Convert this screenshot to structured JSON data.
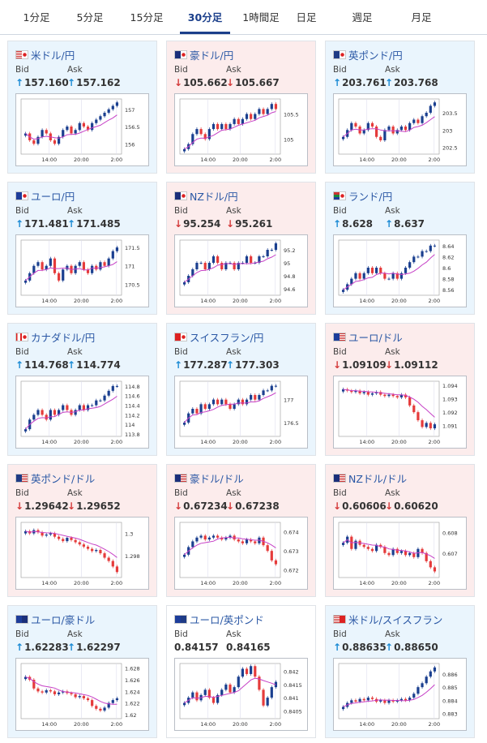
{
  "tabs": [
    {
      "label": "1分足",
      "active": false
    },
    {
      "label": "5分足",
      "active": false
    },
    {
      "label": "15分足",
      "active": false
    },
    {
      "label": "30分足",
      "active": true
    },
    {
      "label": "1時間足",
      "active": false
    },
    {
      "label": "日足",
      "active": false
    },
    {
      "label": "週足",
      "active": false
    },
    {
      "label": "月足",
      "active": false
    }
  ],
  "bid_label": "Bid",
  "ask_label": "Ask",
  "x_ticks": [
    "14:00",
    "20:00",
    "2:00"
  ],
  "colors": {
    "up_candle": "#1a3f8f",
    "down_candle": "#e53b3b",
    "ma_line": "#c640c6",
    "bid_up_bg": "#eaf5fd",
    "bid_down_bg": "#fcecec",
    "link": "#2b58a5"
  },
  "pairs": [
    {
      "name": "米ドル/円",
      "flags": [
        "us-flag-icon",
        "jp-flag-icon"
      ],
      "direction": "up",
      "bid": "157.160",
      "ask": "157.162",
      "chart_data": {
        "type": "candlestick",
        "y_ticks": [
          "157",
          "156.5",
          "156"
        ],
        "ylim": [
          155.7,
          157.3
        ],
        "series": [
          156.3,
          156.1,
          156.0,
          156.2,
          156.4,
          156.3,
          156.1,
          156.0,
          156.2,
          156.4,
          156.5,
          156.3,
          156.4,
          156.6,
          156.5,
          156.4,
          156.6,
          156.7,
          156.8,
          156.9,
          157.0,
          157.1,
          157.2
        ]
      }
    },
    {
      "name": "豪ドル/円",
      "flags": [
        "au-flag-icon",
        "jp-flag-icon"
      ],
      "direction": "down",
      "bid": "105.662",
      "ask": "105.667",
      "chart_data": {
        "type": "candlestick",
        "y_ticks": [
          "105.5",
          "105"
        ],
        "ylim": [
          104.7,
          105.8
        ],
        "series": [
          104.8,
          104.9,
          105.1,
          105.2,
          105.1,
          105.0,
          105.2,
          105.3,
          105.2,
          105.3,
          105.2,
          105.3,
          105.4,
          105.3,
          105.4,
          105.5,
          105.4,
          105.5,
          105.6,
          105.5,
          105.6,
          105.7,
          105.6
        ]
      }
    },
    {
      "name": "英ポンド/円",
      "flags": [
        "uk-flag-icon",
        "jp-flag-icon"
      ],
      "direction": "up",
      "bid": "203.761",
      "ask": "203.768",
      "chart_data": {
        "type": "candlestick",
        "y_ticks": [
          "203.5",
          "203",
          "202.5"
        ],
        "ylim": [
          202.3,
          203.9
        ],
        "series": [
          202.8,
          203.0,
          203.2,
          203.1,
          202.9,
          203.0,
          203.2,
          203.1,
          202.8,
          202.7,
          203.0,
          203.1,
          202.9,
          203.0,
          203.1,
          203.0,
          203.2,
          203.3,
          203.2,
          203.4,
          203.5,
          203.7,
          203.8
        ]
      }
    },
    {
      "name": "ユーロ/円",
      "flags": [
        "eu-flag-icon",
        "jp-flag-icon"
      ],
      "direction": "up",
      "bid": "171.481",
      "ask": "171.485",
      "chart_data": {
        "type": "candlestick",
        "y_ticks": [
          "171.5",
          "171",
          "170.5"
        ],
        "ylim": [
          170.2,
          171.7
        ],
        "series": [
          170.6,
          170.8,
          171.0,
          171.1,
          170.9,
          171.0,
          171.2,
          170.8,
          170.6,
          170.9,
          171.0,
          170.8,
          171.0,
          171.1,
          170.9,
          170.8,
          171.0,
          170.9,
          171.1,
          171.0,
          171.2,
          171.4,
          171.5
        ]
      }
    },
    {
      "name": "NZドル/円",
      "flags": [
        "nz-flag-icon",
        "jp-flag-icon"
      ],
      "direction": "down",
      "bid": "95.254",
      "ask": "95.261",
      "chart_data": {
        "type": "candlestick",
        "y_ticks": [
          "95.2",
          "95",
          "94.8",
          "94.6"
        ],
        "ylim": [
          94.5,
          95.35
        ],
        "series": [
          94.7,
          94.8,
          94.9,
          95.0,
          95.0,
          94.9,
          95.0,
          95.1,
          95.0,
          94.9,
          95.0,
          95.0,
          94.9,
          95.0,
          95.0,
          95.1,
          95.0,
          95.0,
          95.1,
          95.1,
          95.2,
          95.2,
          95.3
        ]
      }
    },
    {
      "name": "ランド/円",
      "flags": [
        "za-flag-icon",
        "jp-flag-icon"
      ],
      "direction": "up",
      "bid": "8.628",
      "ask": "8.637",
      "chart_data": {
        "type": "candlestick",
        "y_ticks": [
          "8.64",
          "8.62",
          "8.6",
          "8.58",
          "8.56"
        ],
        "ylim": [
          8.55,
          8.65
        ],
        "series": [
          8.56,
          8.57,
          8.58,
          8.59,
          8.58,
          8.59,
          8.6,
          8.59,
          8.6,
          8.59,
          8.58,
          8.58,
          8.59,
          8.58,
          8.59,
          8.6,
          8.61,
          8.62,
          8.62,
          8.63,
          8.63,
          8.64,
          8.64
        ]
      }
    },
    {
      "name": "カナダドル/円",
      "flags": [
        "ca-flag-icon",
        "jp-flag-icon"
      ],
      "direction": "up",
      "bid": "114.768",
      "ask": "114.774",
      "chart_data": {
        "type": "candlestick",
        "y_ticks": [
          "114.8",
          "114.6",
          "114.4",
          "114.2",
          "114",
          "113.8"
        ],
        "ylim": [
          113.75,
          114.9
        ],
        "series": [
          113.9,
          114.1,
          114.2,
          114.3,
          114.2,
          114.1,
          114.3,
          114.2,
          114.3,
          114.4,
          114.3,
          114.2,
          114.3,
          114.4,
          114.3,
          114.4,
          114.4,
          114.5,
          114.5,
          114.6,
          114.7,
          114.8,
          114.8
        ]
      }
    },
    {
      "name": "スイスフラン/円",
      "flags": [
        "ch-flag-icon",
        "jp-flag-icon"
      ],
      "direction": "up",
      "bid": "177.287",
      "ask": "177.303",
      "chart_data": {
        "type": "candlestick",
        "y_ticks": [
          "177",
          "176.5"
        ],
        "ylim": [
          176.2,
          177.4
        ],
        "series": [
          176.5,
          176.7,
          176.8,
          176.7,
          176.9,
          176.8,
          176.9,
          177.0,
          176.9,
          177.0,
          176.9,
          176.8,
          176.9,
          177.0,
          176.9,
          177.0,
          177.1,
          177.0,
          177.1,
          177.2,
          177.2,
          177.3,
          177.3
        ]
      }
    },
    {
      "name": "ユーロ/ドル",
      "flags": [
        "eu-flag-icon",
        "us-flag-icon"
      ],
      "direction": "down",
      "bid": "1.09109",
      "ask": "1.09112",
      "chart_data": {
        "type": "candlestick",
        "y_ticks": [
          "1.094",
          "1.093",
          "1.092",
          "1.091"
        ],
        "ylim": [
          1.0902,
          1.0943
        ],
        "series": [
          1.0937,
          1.0936,
          1.0935,
          1.0936,
          1.0934,
          1.0935,
          1.0933,
          1.0934,
          1.0935,
          1.0933,
          1.0932,
          1.0933,
          1.0932,
          1.0931,
          1.0933,
          1.0931,
          1.0925,
          1.092,
          1.0914,
          1.0909,
          1.0912,
          1.0908,
          1.0911
        ]
      }
    },
    {
      "name": "英ポンド/ドル",
      "flags": [
        "uk-flag-icon",
        "us-flag-icon"
      ],
      "direction": "down",
      "bid": "1.29642",
      "ask": "1.29652",
      "chart_data": {
        "type": "candlestick",
        "y_ticks": [
          "1.3",
          "1.298"
        ],
        "ylim": [
          1.296,
          1.301
        ],
        "series": [
          1.3002,
          1.3,
          1.3003,
          1.3001,
          1.2998,
          1.2999,
          1.3,
          1.2997,
          1.2995,
          1.2993,
          1.2996,
          1.2994,
          1.2992,
          1.299,
          1.2988,
          1.2986,
          1.2984,
          1.2985,
          1.2982,
          1.2978,
          1.2975,
          1.297,
          1.2965
        ]
      }
    },
    {
      "name": "豪ドル/ドル",
      "flags": [
        "au-flag-icon",
        "us-flag-icon"
      ],
      "direction": "down",
      "bid": "0.67234",
      "ask": "0.67238",
      "chart_data": {
        "type": "candlestick",
        "y_ticks": [
          "0.674",
          "0.673",
          "0.672"
        ],
        "ylim": [
          0.6716,
          0.6745
        ],
        "series": [
          0.6728,
          0.6732,
          0.6735,
          0.6737,
          0.6738,
          0.6736,
          0.6737,
          0.6738,
          0.6737,
          0.6736,
          0.6737,
          0.6738,
          0.6736,
          0.6735,
          0.6734,
          0.6736,
          0.6735,
          0.6734,
          0.6737,
          0.6733,
          0.673,
          0.6725,
          0.6723
        ]
      }
    },
    {
      "name": "NZドル/ドル",
      "flags": [
        "nz-flag-icon",
        "us-flag-icon"
      ],
      "direction": "down",
      "bid": "0.60606",
      "ask": "0.60620",
      "chart_data": {
        "type": "candlestick",
        "y_ticks": [
          "0.608",
          "0.607"
        ],
        "ylim": [
          0.6058,
          0.6085
        ],
        "series": [
          0.6075,
          0.6078,
          0.6072,
          0.6076,
          0.6074,
          0.6073,
          0.6072,
          0.6071,
          0.6074,
          0.6073,
          0.607,
          0.6069,
          0.6072,
          0.607,
          0.6071,
          0.6069,
          0.607,
          0.6068,
          0.6072,
          0.607,
          0.6066,
          0.6063,
          0.6061
        ]
      }
    },
    {
      "name": "ユーロ/豪ドル",
      "flags": [
        "eu-flag-icon",
        "au-flag-icon"
      ],
      "direction": "up",
      "bid": "1.62283",
      "ask": "1.62297",
      "chart_data": {
        "type": "candlestick",
        "y_ticks": [
          "1.628",
          "1.626",
          "1.624",
          "1.622",
          "1.62"
        ],
        "ylim": [
          1.6193,
          1.6288
        ],
        "series": [
          1.6265,
          1.626,
          1.6245,
          1.624,
          1.6238,
          1.6242,
          1.624,
          1.6235,
          1.6238,
          1.624,
          1.6237,
          1.6235,
          1.623,
          1.6232,
          1.6228,
          1.6225,
          1.6215,
          1.621,
          1.6207,
          1.6212,
          1.622,
          1.6225,
          1.6228
        ]
      }
    },
    {
      "name": "ユーロ/英ポンド",
      "flags": [
        "eu-flag-icon",
        "uk-flag-icon"
      ],
      "direction": "flat",
      "bid": "0.84157",
      "ask": "0.84165",
      "chart_data": {
        "type": "candlestick",
        "y_ticks": [
          "0.842",
          "0.8415",
          "0.841",
          "0.8405"
        ],
        "ylim": [
          0.8402,
          0.8423
        ],
        "series": [
          0.8408,
          0.841,
          0.8412,
          0.8409,
          0.8411,
          0.8413,
          0.841,
          0.8408,
          0.8411,
          0.8413,
          0.8415,
          0.8412,
          0.8414,
          0.8418,
          0.8421,
          0.8419,
          0.8422,
          0.8418,
          0.8413,
          0.8407,
          0.841,
          0.8414,
          0.8416
        ]
      }
    },
    {
      "name": "米ドル/スイスフラン",
      "flags": [
        "us-flag-icon",
        "ch-flag-icon"
      ],
      "direction": "up",
      "bid": "0.88635",
      "ask": "0.88650",
      "chart_data": {
        "type": "candlestick",
        "y_ticks": [
          "0.886",
          "0.885",
          "0.884",
          "0.883"
        ],
        "ylim": [
          0.8826,
          0.8868
        ],
        "series": [
          0.8835,
          0.8838,
          0.884,
          0.8839,
          0.8841,
          0.884,
          0.8842,
          0.8841,
          0.8839,
          0.884,
          0.8838,
          0.884,
          0.8839,
          0.884,
          0.8841,
          0.884,
          0.8842,
          0.8845,
          0.885,
          0.8853,
          0.8858,
          0.8862,
          0.8865
        ]
      }
    }
  ]
}
